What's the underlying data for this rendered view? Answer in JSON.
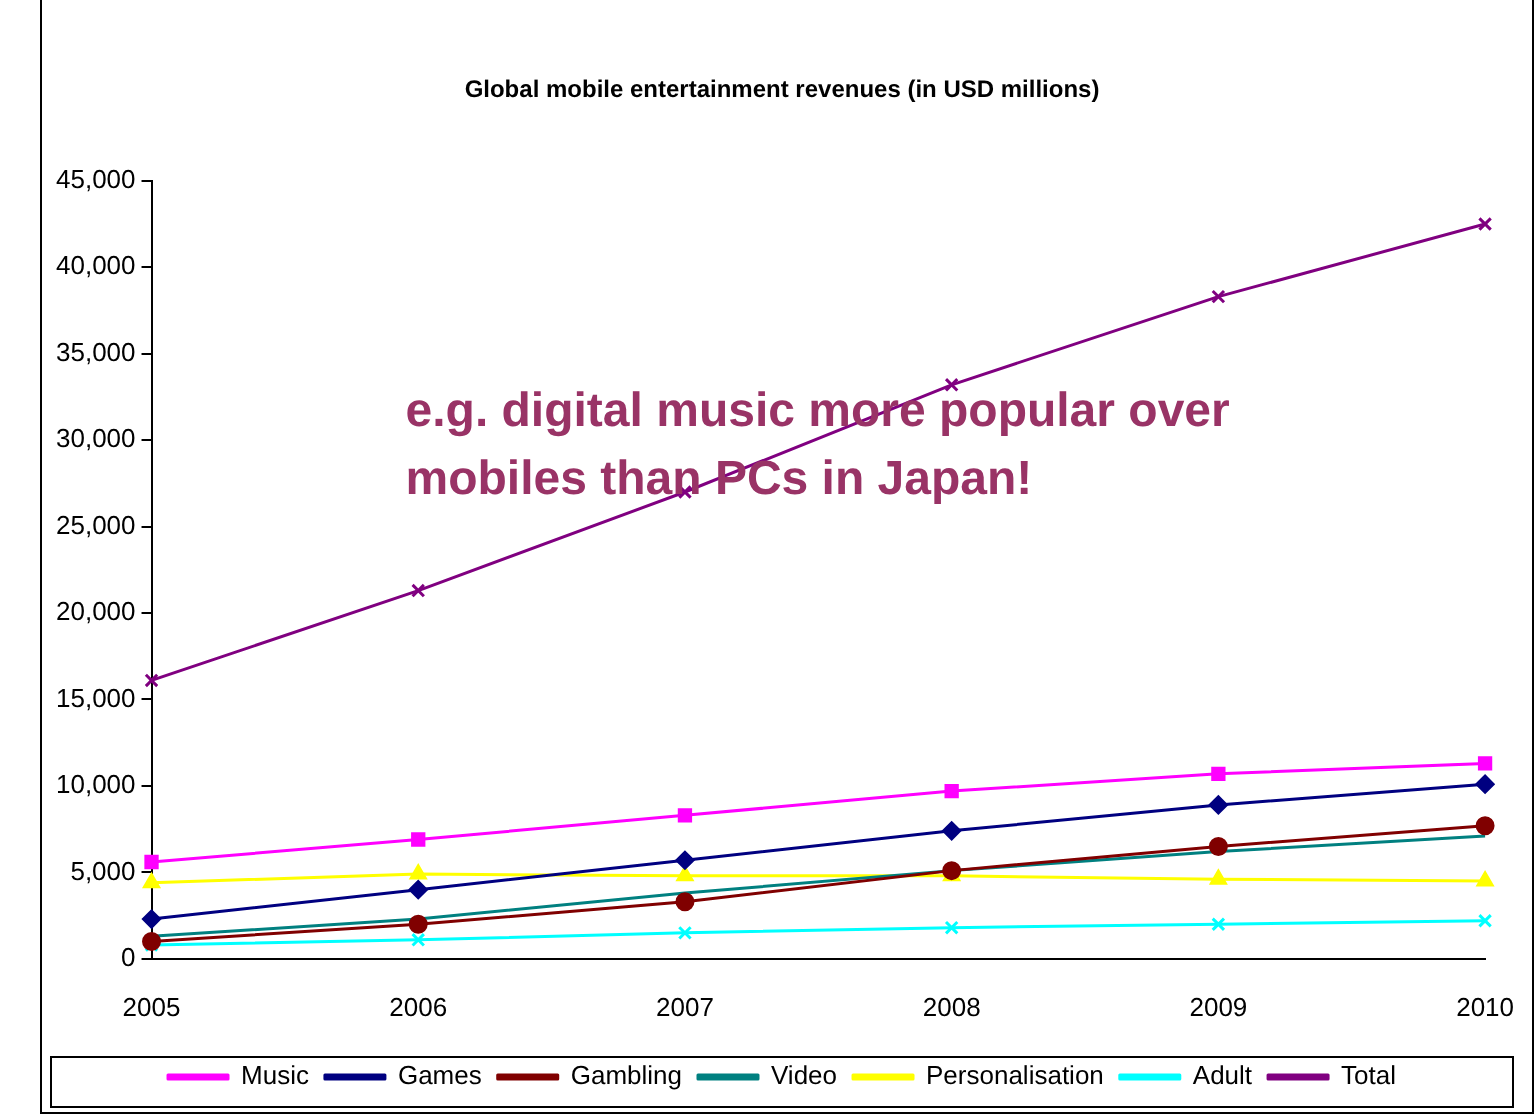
{
  "chart_data": {
    "type": "line",
    "title": "Global mobile entertainment revenues (in USD millions)",
    "categories": [
      "2005",
      "2006",
      "2007",
      "2008",
      "2009",
      "2010"
    ],
    "series": [
      {
        "name": "Music",
        "color": "#ff00ff",
        "marker": "square",
        "values": [
          5600,
          6900,
          8300,
          9700,
          10700,
          11300
        ]
      },
      {
        "name": "Games",
        "color": "#000080",
        "marker": "diamond",
        "values": [
          2300,
          4000,
          5700,
          7400,
          8900,
          10100
        ]
      },
      {
        "name": "Gambling",
        "color": "#800000",
        "marker": "circle",
        "values": [
          1000,
          2000,
          3300,
          5100,
          6500,
          7700
        ]
      },
      {
        "name": "Video",
        "color": "#008080",
        "marker": "none",
        "values": [
          1300,
          2300,
          3800,
          5100,
          6200,
          7100
        ]
      },
      {
        "name": "Personalisation",
        "color": "#ffff00",
        "marker": "triangle",
        "values": [
          4400,
          4900,
          4800,
          4800,
          4600,
          4500
        ]
      },
      {
        "name": "Adult",
        "color": "#00ffff",
        "marker": "cross",
        "values": [
          800,
          1100,
          1500,
          1800,
          2000,
          2200
        ]
      },
      {
        "name": "Total",
        "color": "#800080",
        "marker": "cross",
        "values": [
          16100,
          21300,
          27000,
          33200,
          38300,
          42500
        ]
      }
    ],
    "ylim": [
      0,
      45000
    ],
    "yticks": [
      0,
      {
        "value": 5000,
        "label": "5,000"
      },
      {
        "value": 10000,
        "label": "10,000"
      },
      {
        "value": 15000,
        "label": "15,000"
      },
      {
        "value": 20000,
        "label": "20,000"
      },
      {
        "value": 25000,
        "label": "25,000"
      },
      {
        "value": 30000,
        "label": "30,000"
      },
      {
        "value": 35000,
        "label": "35,000"
      },
      {
        "value": 40000,
        "label": "40,000"
      },
      {
        "value": 45000,
        "label": "45,000"
      }
    ],
    "grid": false,
    "legend": "bottom",
    "annotations": [
      "e.g. digital music more popular over mobiles than PCs in Japan!"
    ]
  }
}
